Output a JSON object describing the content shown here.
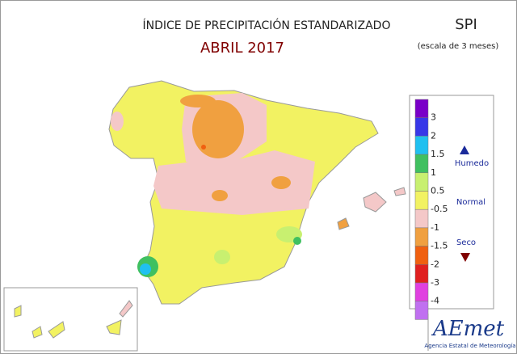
{
  "header": {
    "title": "ÍNDICE DE PRECIPITACIÓN ESTANDARIZADO",
    "period": "ABRIL 2017",
    "index": "SPI",
    "scale": "(escala de 3 meses)"
  },
  "legend": {
    "colors": [
      "#7a00c8",
      "#3838e8",
      "#20c0f0",
      "#40c060",
      "#c8f070",
      "#f2f262",
      "#f4c8c8",
      "#f0a040",
      "#f06010",
      "#e02020",
      "#e040e0",
      "#c070f0"
    ],
    "boundaries": [
      3,
      2,
      1.5,
      1,
      0.5,
      -0.5,
      -1,
      -1.5,
      -2,
      -3,
      -4
    ],
    "wet": "Humedo",
    "normal": "Normal",
    "dry": "Seco"
  },
  "footer": {
    "logo": "AEmet",
    "agency": "Agencia Estatal de Meteorología"
  }
}
